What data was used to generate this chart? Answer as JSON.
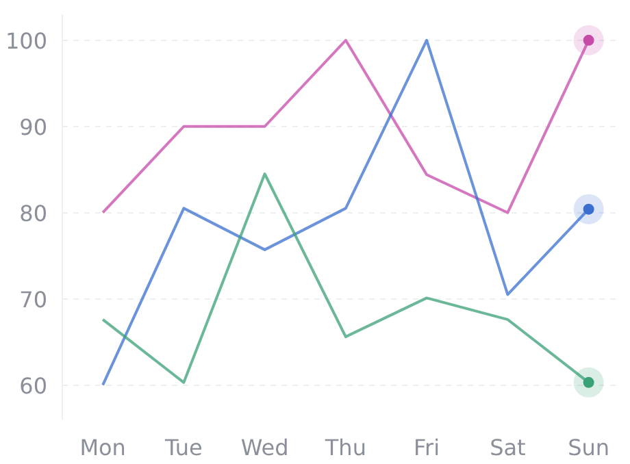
{
  "chart_data": {
    "type": "line",
    "categories": [
      "Mon",
      "Tue",
      "Wed",
      "Thu",
      "Fri",
      "Sat",
      "Sun"
    ],
    "series": [
      {
        "color": "#c64aa8",
        "values": [
          80,
          90,
          90,
          100,
          84.4,
          80,
          100
        ]
      },
      {
        "color": "#3a6fd0",
        "values": [
          60,
          80.5,
          75.7,
          80.5,
          100,
          70.5,
          80.4
        ]
      },
      {
        "color": "#3aa076",
        "values": [
          67.6,
          60.3,
          84.5,
          65.6,
          70.1,
          67.6,
          60.3
        ]
      }
    ],
    "ylim": [
      56,
      103
    ],
    "yticks": [
      60,
      70,
      80,
      90,
      100
    ],
    "grid": "y",
    "line_style": "solid"
  }
}
